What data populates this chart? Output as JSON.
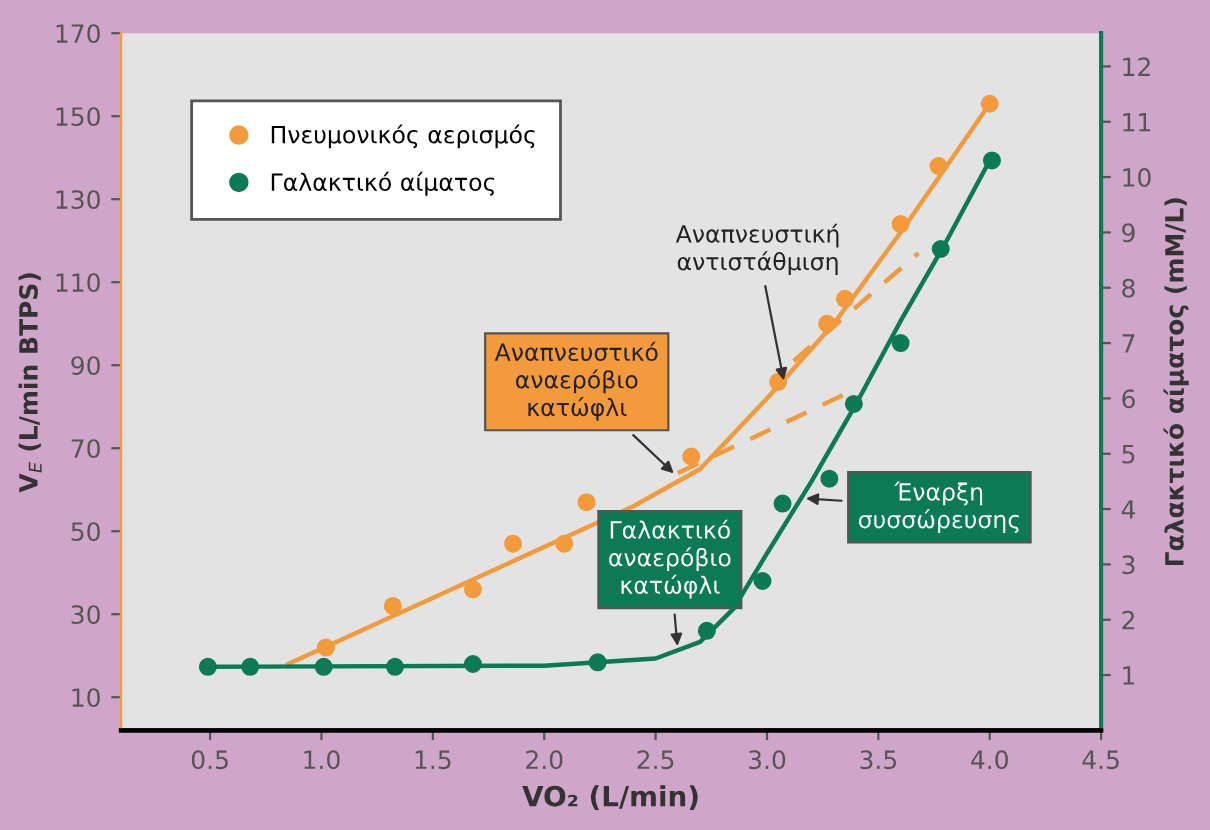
{
  "chart_data": {
    "type": "scatter",
    "xlabel": "VO₂ (L/min)",
    "ylabel": "V$_{E}$ (L/min BTPS)",
    "y2label": "Γαλακτικό αίματος (mM/L)",
    "xlim": [
      0.1,
      4.5
    ],
    "xticks": [
      {
        "value": 0.5,
        "label": "0.5"
      },
      {
        "value": 1.0,
        "label": "1.0"
      },
      {
        "value": 1.5,
        "label": "1.5"
      },
      {
        "value": 2.0,
        "label": "2.0"
      },
      {
        "value": 2.5,
        "label": "2.5"
      },
      {
        "value": 3.0,
        "label": "3.0"
      },
      {
        "value": 3.5,
        "label": "3.5"
      },
      {
        "value": 4.0,
        "label": "4.0"
      },
      {
        "value": 4.5,
        "label": "4.5"
      }
    ],
    "ylim": [
      2,
      170
    ],
    "yticks": [
      10,
      30,
      50,
      70,
      90,
      110,
      130,
      150,
      170
    ],
    "y2lim": [
      0,
      12.6
    ],
    "y2ticks": [
      1,
      2,
      3,
      4,
      5,
      6,
      7,
      8,
      9,
      10,
      11,
      12
    ],
    "legend": "top left",
    "marker": "circle",
    "grid": false,
    "series": [
      {
        "name": "Πνευμονικός αερισμός",
        "color": "#f29a3c",
        "x": [
          1.02,
          1.32,
          1.68,
          1.86,
          2.09,
          2.19,
          2.66,
          3.05,
          3.27,
          3.35,
          3.6,
          3.77,
          4.0
        ],
        "values": [
          22,
          32,
          36,
          47,
          47,
          57,
          68,
          86,
          100,
          106,
          124,
          138,
          153
        ]
      },
      {
        "name": "Γαλακτικό αίματος",
        "axis": "y2",
        "color": "#0b7a55",
        "x": [
          0.49,
          0.68,
          1.01,
          1.33,
          1.68,
          2.24,
          2.73,
          2.98,
          3.07,
          3.28,
          3.39,
          3.6,
          3.78,
          4.01
        ],
        "values": [
          1.15,
          1.15,
          1.15,
          1.15,
          1.2,
          1.23,
          1.8,
          2.7,
          4.1,
          4.55,
          5.9,
          7.0,
          8.7,
          10.3
        ]
      },
      {
        "type": "line",
        "color": "#f29a3c",
        "marker": "none",
        "line_style": "solid",
        "x": [
          0.85,
          2.4,
          2.7,
          3.0,
          3.3,
          3.6,
          4.0
        ],
        "values": [
          18,
          56,
          65,
          82,
          100,
          122,
          153
        ]
      },
      {
        "type": "line",
        "color": "#f29a3c",
        "marker": "none",
        "line_style": "dashed",
        "x": [
          2.6,
          3.35
        ],
        "values": [
          64,
          83
        ]
      },
      {
        "type": "line",
        "color": "#f29a3c",
        "marker": "none",
        "line_style": "dashed",
        "x": [
          3.12,
          3.68
        ],
        "values": [
          91,
          117
        ]
      },
      {
        "type": "line",
        "axis": "y2",
        "color": "#0b7a55",
        "marker": "none",
        "line_style": "solid",
        "x": [
          0.5,
          2.0,
          2.5,
          2.7,
          2.85,
          3.0,
          3.2,
          3.4,
          3.6,
          3.8,
          4.0
        ],
        "values": [
          1.15,
          1.17,
          1.3,
          1.6,
          2.2,
          3.2,
          4.5,
          5.9,
          7.4,
          8.8,
          10.3
        ]
      }
    ],
    "annotations": [
      {
        "text": "Αναπνευστική\nαντιστάθμιση",
        "x": 3.08,
        "y": 85
      },
      {
        "text": "Αναπνευστικό\nαναερόβιο\nκατώφλι",
        "x": 2.6,
        "y": 63
      },
      {
        "text": "Γαλακτικό\nαναερόβιο\nκατώφλι",
        "x": 2.6,
        "y": 21
      },
      {
        "text": "Έναρξη\nσυσσώρευσης",
        "x": 3.15,
        "y": 58
      }
    ]
  }
}
